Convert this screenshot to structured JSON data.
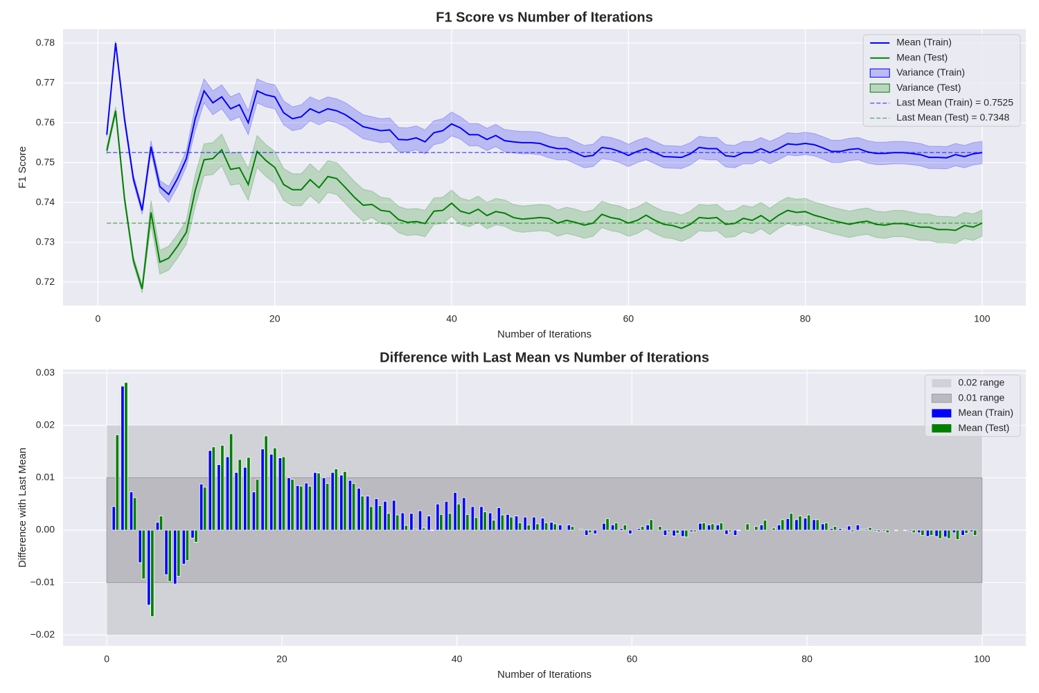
{
  "chart_data": [
    {
      "type": "line",
      "title": "F1 Score vs Number of Iterations",
      "xlabel": "Number of Iterations",
      "ylabel": "F1 Score",
      "x": [
        1,
        2,
        3,
        4,
        5,
        6,
        7,
        8,
        9,
        10,
        11,
        12,
        13,
        14,
        15,
        16,
        17,
        18,
        19,
        20,
        21,
        22,
        23,
        24,
        25,
        26,
        27,
        28,
        29,
        30,
        31,
        32,
        33,
        34,
        35,
        36,
        37,
        38,
        39,
        40,
        41,
        42,
        43,
        44,
        45,
        46,
        47,
        48,
        49,
        50,
        51,
        52,
        53,
        54,
        55,
        56,
        57,
        58,
        59,
        60,
        61,
        62,
        63,
        64,
        65,
        66,
        67,
        68,
        69,
        70,
        71,
        72,
        73,
        74,
        75,
        76,
        77,
        78,
        79,
        80,
        81,
        82,
        83,
        84,
        85,
        86,
        87,
        88,
        89,
        90,
        91,
        92,
        93,
        94,
        95,
        96,
        97,
        98,
        99,
        100
      ],
      "series": [
        {
          "name": "Mean (Train)",
          "color": "#0000ff",
          "values": [
            0.757,
            0.78,
            0.761,
            0.746,
            0.738,
            0.754,
            0.744,
            0.742,
            0.746,
            0.751,
            0.761,
            0.768,
            0.765,
            0.7665,
            0.7635,
            0.7645,
            0.76,
            0.768,
            0.767,
            0.7665,
            0.7625,
            0.761,
            0.7615,
            0.7635,
            0.7625,
            0.7635,
            0.763,
            0.762,
            0.7605,
            0.759,
            0.7585,
            0.758,
            0.7582,
            0.7558,
            0.7557,
            0.7562,
            0.7552,
            0.7575,
            0.758,
            0.7597,
            0.7587,
            0.757,
            0.757,
            0.7558,
            0.7568,
            0.7555,
            0.7552,
            0.755,
            0.755,
            0.7548,
            0.754,
            0.7535,
            0.7535,
            0.7525,
            0.7515,
            0.7518,
            0.7538,
            0.7535,
            0.7528,
            0.7518,
            0.7528,
            0.7535,
            0.7525,
            0.7515,
            0.7514,
            0.7513,
            0.7522,
            0.7538,
            0.7535,
            0.7535,
            0.7517,
            0.7515,
            0.7525,
            0.7525,
            0.7535,
            0.7525,
            0.7535,
            0.7547,
            0.7545,
            0.7548,
            0.7545,
            0.7537,
            0.7528,
            0.7528,
            0.7533,
            0.7535,
            0.7527,
            0.7523,
            0.7523,
            0.7525,
            0.7525,
            0.7523,
            0.752,
            0.7513,
            0.7513,
            0.7512,
            0.752,
            0.7515,
            0.7522,
            0.7525
          ]
        },
        {
          "name": "Mean (Test)",
          "color": "#008000",
          "values": [
            0.753,
            0.763,
            0.741,
            0.7255,
            0.7183,
            0.7375,
            0.725,
            0.726,
            0.729,
            0.7325,
            0.743,
            0.7507,
            0.751,
            0.7532,
            0.7483,
            0.7487,
            0.7445,
            0.7528,
            0.7505,
            0.7488,
            0.7445,
            0.7432,
            0.7432,
            0.7457,
            0.7437,
            0.7465,
            0.746,
            0.7437,
            0.7413,
            0.7393,
            0.7395,
            0.738,
            0.7377,
            0.7357,
            0.735,
            0.7352,
            0.7347,
            0.7378,
            0.738,
            0.7398,
            0.7378,
            0.7372,
            0.7383,
            0.7367,
            0.7377,
            0.7373,
            0.7362,
            0.7358,
            0.736,
            0.7362,
            0.736,
            0.7348,
            0.7355,
            0.735,
            0.7343,
            0.7348,
            0.737,
            0.7362,
            0.7358,
            0.7348,
            0.7355,
            0.7368,
            0.7355,
            0.7345,
            0.7342,
            0.7335,
            0.7345,
            0.7362,
            0.736,
            0.7362,
            0.7345,
            0.7347,
            0.736,
            0.7355,
            0.7367,
            0.7352,
            0.7368,
            0.738,
            0.7375,
            0.7377,
            0.7368,
            0.7362,
            0.7355,
            0.735,
            0.7345,
            0.735,
            0.7353,
            0.7345,
            0.7343,
            0.7347,
            0.7347,
            0.7343,
            0.7338,
            0.7338,
            0.7332,
            0.7332,
            0.733,
            0.7342,
            0.7338,
            0.7348
          ]
        }
      ],
      "bands": [
        {
          "name": "Variance (Train)",
          "color": "#0000ff",
          "values": [
            0.0005,
            0.0005,
            0.001,
            0.001,
            0.001,
            0.0015,
            0.0015,
            0.002,
            0.002,
            0.002,
            0.003,
            0.003,
            0.003,
            0.003,
            0.003,
            0.003,
            0.003,
            0.003,
            0.003,
            0.003,
            0.003,
            0.003,
            0.003,
            0.003,
            0.003,
            0.003,
            0.003,
            0.003,
            0.003,
            0.003,
            0.003,
            0.003,
            0.003,
            0.003,
            0.003,
            0.003,
            0.003,
            0.003,
            0.003,
            0.003,
            0.0028,
            0.0028,
            0.0028,
            0.0028,
            0.0028,
            0.0028,
            0.0028,
            0.0028,
            0.0028,
            0.0028,
            0.0028,
            0.0028,
            0.0028,
            0.0028,
            0.0028,
            0.0028,
            0.0028,
            0.0028,
            0.0028,
            0.0028,
            0.0028,
            0.0028,
            0.0028,
            0.0028,
            0.0028,
            0.0028,
            0.0028,
            0.0028,
            0.0028,
            0.0028,
            0.0028,
            0.0028,
            0.0028,
            0.0028,
            0.0028,
            0.0028,
            0.0028,
            0.0028,
            0.0028,
            0.0028,
            0.0028,
            0.0028,
            0.0028,
            0.0028,
            0.0028,
            0.0028,
            0.0028,
            0.0028,
            0.0028,
            0.0028,
            0.0028,
            0.0028,
            0.0028,
            0.0028,
            0.0028,
            0.0028,
            0.0028,
            0.0028,
            0.0028,
            0.0028
          ]
        },
        {
          "name": "Variance (Test)",
          "color": "#008000",
          "values": [
            0.001,
            0.001,
            0.001,
            0.001,
            0.001,
            0.003,
            0.003,
            0.003,
            0.003,
            0.003,
            0.004,
            0.004,
            0.004,
            0.004,
            0.004,
            0.004,
            0.004,
            0.004,
            0.004,
            0.004,
            0.004,
            0.004,
            0.004,
            0.004,
            0.004,
            0.004,
            0.004,
            0.004,
            0.004,
            0.004,
            0.0033,
            0.0033,
            0.0033,
            0.0033,
            0.0033,
            0.0033,
            0.0033,
            0.0033,
            0.0033,
            0.0033,
            0.0033,
            0.0033,
            0.0033,
            0.0033,
            0.0033,
            0.0033,
            0.0033,
            0.0033,
            0.0033,
            0.0033,
            0.0033,
            0.0033,
            0.0033,
            0.0033,
            0.0033,
            0.0033,
            0.0033,
            0.0033,
            0.0033,
            0.0033,
            0.0033,
            0.0033,
            0.0033,
            0.0033,
            0.0033,
            0.0033,
            0.0033,
            0.0033,
            0.0033,
            0.0033,
            0.0033,
            0.0033,
            0.0033,
            0.0033,
            0.0033,
            0.0033,
            0.0033,
            0.0033,
            0.0033,
            0.0033,
            0.0033,
            0.0033,
            0.0033,
            0.0033,
            0.0033,
            0.0033,
            0.0033,
            0.0033,
            0.0033,
            0.0033,
            0.0033,
            0.0033,
            0.0033,
            0.0033,
            0.0033,
            0.0033,
            0.0033,
            0.0033,
            0.0033,
            0.0033
          ]
        }
      ],
      "reference_lines": [
        {
          "name": "Last Mean (Train) = 0.7525",
          "value": 0.7525,
          "color": "#0000ff"
        },
        {
          "name": "Last Mean (Test) = 0.7348",
          "value": 0.7348,
          "color": "#008000"
        }
      ],
      "xlim": [
        -3.95,
        104.95
      ],
      "ylim": [
        0.7141,
        0.7835
      ],
      "xticks": [
        0,
        20,
        40,
        60,
        80,
        100
      ],
      "yticks": [
        0.72,
        0.73,
        0.74,
        0.75,
        0.76,
        0.77,
        0.78
      ],
      "grid": true,
      "legend": "upper right"
    },
    {
      "type": "bar",
      "title": "Difference with Last Mean vs Number of Iterations",
      "xlabel": "Number of Iterations",
      "ylabel": "Difference with Last Mean",
      "x": [
        1,
        2,
        3,
        4,
        5,
        6,
        7,
        8,
        9,
        10,
        11,
        12,
        13,
        14,
        15,
        16,
        17,
        18,
        19,
        20,
        21,
        22,
        23,
        24,
        25,
        26,
        27,
        28,
        29,
        30,
        31,
        32,
        33,
        34,
        35,
        36,
        37,
        38,
        39,
        40,
        41,
        42,
        43,
        44,
        45,
        46,
        47,
        48,
        49,
        50,
        51,
        52,
        53,
        54,
        55,
        56,
        57,
        58,
        59,
        60,
        61,
        62,
        63,
        64,
        65,
        66,
        67,
        68,
        69,
        70,
        71,
        72,
        73,
        74,
        75,
        76,
        77,
        78,
        79,
        80,
        81,
        82,
        83,
        84,
        85,
        86,
        87,
        88,
        89,
        90,
        91,
        92,
        93,
        94,
        95,
        96,
        97,
        98,
        99,
        100
      ],
      "ranges": [
        {
          "name": "0.02 range",
          "value": 0.02,
          "color": "#d1d2d7"
        },
        {
          "name": "0.01 range",
          "value": 0.01,
          "color": "#bbbac0"
        }
      ],
      "series": [
        {
          "name": "Mean (Train)",
          "color": "#0000ff",
          "values": [
            0.0045,
            0.0275,
            0.0073,
            -0.0062,
            -0.0143,
            0.0015,
            -0.0085,
            -0.0103,
            -0.0065,
            -0.0015,
            0.0088,
            0.0152,
            0.0125,
            0.014,
            0.011,
            0.012,
            0.0073,
            0.0155,
            0.0145,
            0.0138,
            0.01,
            0.0085,
            0.009,
            0.011,
            0.01,
            0.011,
            0.0105,
            0.0095,
            0.008,
            0.0065,
            0.006,
            0.0055,
            0.0057,
            0.0033,
            0.0032,
            0.0037,
            0.0027,
            0.005,
            0.0055,
            0.0072,
            0.0062,
            0.0045,
            0.0045,
            0.0033,
            0.0043,
            0.003,
            0.0027,
            0.0025,
            0.0025,
            0.0023,
            0.0015,
            0.001,
            0.001,
            0,
            -0.001,
            -0.0007,
            0.0013,
            0.001,
            0.0003,
            -0.0007,
            0.0003,
            0.001,
            0,
            -0.001,
            -0.0011,
            -0.0012,
            -0.0003,
            0.0013,
            0.001,
            0.001,
            -0.0008,
            -0.001,
            0,
            0,
            0.001,
            0,
            0.001,
            0.0022,
            0.002,
            0.0023,
            0.002,
            0.0012,
            0.0003,
            0.0003,
            0.0008,
            0.001,
            0.0002,
            -0.0002,
            -0.0002,
            0,
            0,
            -0.0002,
            -0.0005,
            -0.0012,
            -0.0012,
            -0.0013,
            -0.0005,
            -0.001,
            -0.0003,
            0
          ]
        },
        {
          "name": "Mean (Test)",
          "color": "#008000",
          "values": [
            0.0182,
            0.0282,
            0.0062,
            -0.0093,
            -0.0165,
            0.0027,
            -0.0098,
            -0.0088,
            -0.0058,
            -0.0023,
            0.0082,
            0.0159,
            0.0162,
            0.0184,
            0.0135,
            0.0139,
            0.0097,
            0.018,
            0.0157,
            0.014,
            0.0097,
            0.0084,
            0.0084,
            0.0109,
            0.0089,
            0.0117,
            0.0112,
            0.0089,
            0.0065,
            0.0045,
            0.0047,
            0.0032,
            0.0029,
            0.0009,
            0.0002,
            0.0004,
            -0.0001,
            0.003,
            0.0032,
            0.005,
            0.003,
            0.0024,
            0.0035,
            0.0019,
            0.0029,
            0.0025,
            0.0014,
            0.001,
            0.0012,
            0.0014,
            0.0012,
            0,
            0.0007,
            0.0002,
            -0.0005,
            0,
            0.0022,
            0.0014,
            0.001,
            0,
            0.0007,
            0.002,
            0.0007,
            -0.0003,
            -0.0006,
            -0.0013,
            -0.0003,
            0.0014,
            0.0012,
            0.0014,
            -0.0003,
            -0.0001,
            0.0012,
            0.0007,
            0.0019,
            0.0004,
            0.002,
            0.0032,
            0.0027,
            0.0029,
            0.002,
            0.0014,
            0.0007,
            0.0002,
            -0.0003,
            0.0002,
            0.0005,
            -0.0003,
            -0.0005,
            -0.0001,
            -0.0001,
            -0.0005,
            -0.001,
            -0.001,
            -0.0016,
            -0.0016,
            -0.0018,
            -0.0006,
            -0.001,
            0
          ]
        }
      ],
      "xlim": [
        -5,
        105
      ],
      "ylim": [
        -0.0221,
        0.0307
      ],
      "xticks": [
        0,
        20,
        40,
        60,
        80,
        100
      ],
      "yticks": [
        {
          "value": -0.02,
          "label": "−0.02"
        },
        {
          "value": -0.01,
          "label": "−0.01"
        },
        {
          "value": 0,
          "label": "0.00"
        },
        0.01,
        0.02,
        0.03
      ],
      "grid": true,
      "legend": "upper right"
    }
  ]
}
